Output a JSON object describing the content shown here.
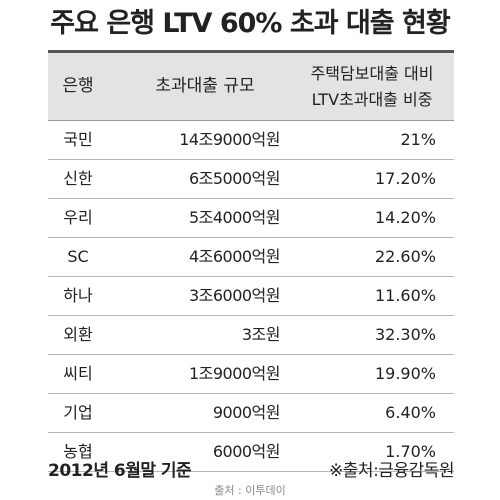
{
  "title": "주요 은행 LTV 60% 초과 대출 현황",
  "table": {
    "headers": {
      "bank": "은행",
      "excess": "초과대출 규모",
      "ratio_line1": "주택담보대출 대비",
      "ratio_line2": "LTV초과대출 비중"
    },
    "rows": [
      {
        "bank": "국민",
        "excess": "14조9000억원",
        "ratio": "21%"
      },
      {
        "bank": "신한",
        "excess": "6조5000억원",
        "ratio": "17.20%"
      },
      {
        "bank": "우리",
        "excess": "5조4000억원",
        "ratio": "14.20%"
      },
      {
        "bank": "SC",
        "excess": "4조6000억원",
        "ratio": "22.60%"
      },
      {
        "bank": "하나",
        "excess": "3조6000억원",
        "ratio": "11.60%"
      },
      {
        "bank": "외환",
        "excess": "3조원",
        "ratio": "32.30%"
      },
      {
        "bank": "씨티",
        "excess": "1조9000억원",
        "ratio": "19.90%"
      },
      {
        "bank": "기업",
        "excess": "9000억원",
        "ratio": "6.40%"
      },
      {
        "bank": "농협",
        "excess": "6000억원",
        "ratio": "1.70%"
      }
    ]
  },
  "footer": {
    "date_note": "2012년 6월말 기준",
    "source": "※출처:금융감독원"
  },
  "credit": "출처 : 이투데이"
}
